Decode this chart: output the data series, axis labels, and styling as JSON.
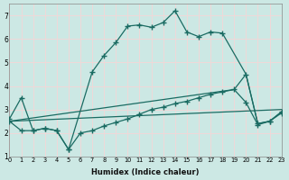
{
  "background_color": "#cce8e4",
  "grid_color": "#f0d8d8",
  "line_color": "#1a6b62",
  "xlabel": "Humidex (Indice chaleur)",
  "ylim": [
    1,
    7.5
  ],
  "xlim": [
    0,
    23
  ],
  "yticks": [
    1,
    2,
    3,
    4,
    5,
    6,
    7
  ],
  "xticks": [
    0,
    1,
    2,
    3,
    4,
    5,
    6,
    7,
    8,
    9,
    10,
    11,
    12,
    13,
    14,
    15,
    16,
    17,
    18,
    19,
    20,
    21,
    22,
    23
  ],
  "line1_marked": {
    "x": [
      0,
      1,
      2,
      3,
      4,
      5,
      7,
      8,
      9,
      10,
      11,
      12,
      13,
      14,
      15,
      16,
      17,
      18,
      20,
      21,
      22,
      23
    ],
    "y": [
      2.6,
      3.5,
      2.1,
      2.2,
      2.1,
      1.3,
      4.6,
      5.3,
      5.85,
      6.55,
      6.6,
      6.5,
      6.7,
      7.2,
      6.3,
      6.1,
      6.3,
      6.25,
      4.5,
      2.4,
      2.5,
      2.9
    ]
  },
  "line2_marked": {
    "x": [
      0,
      1,
      2,
      3,
      4,
      5,
      6,
      7,
      8,
      9,
      10,
      11,
      12,
      13,
      14,
      15,
      16,
      17,
      18,
      19,
      20,
      21,
      22,
      23
    ],
    "y": [
      2.5,
      2.1,
      2.1,
      2.2,
      2.1,
      1.3,
      2.0,
      2.1,
      2.3,
      2.45,
      2.6,
      2.8,
      3.0,
      3.1,
      3.25,
      3.35,
      3.5,
      3.65,
      3.75,
      3.85,
      3.3,
      2.35,
      2.5,
      2.85
    ]
  },
  "line3_straight": {
    "x": [
      0,
      19,
      20,
      21,
      22,
      23
    ],
    "y": [
      2.5,
      3.85,
      4.5,
      2.4,
      2.5,
      2.9
    ]
  },
  "line4_straight": {
    "x": [
      0,
      23
    ],
    "y": [
      2.5,
      3.0
    ]
  }
}
